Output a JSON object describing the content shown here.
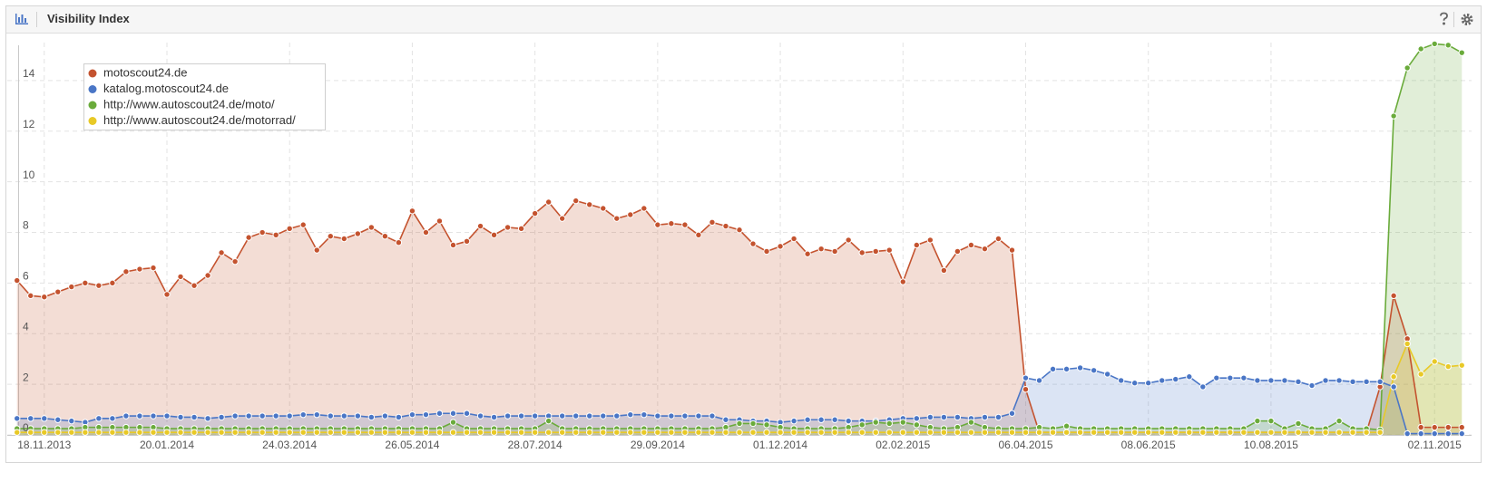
{
  "chart_data": {
    "type": "area",
    "title": "Visibility Index",
    "x": [
      "2013-11-04",
      "2013-11-11",
      "2013-11-18",
      "2013-11-25",
      "2013-12-02",
      "2013-12-09",
      "2013-12-16",
      "2013-12-23",
      "2013-12-30",
      "2014-01-06",
      "2014-01-13",
      "2014-01-20",
      "2014-01-27",
      "2014-02-03",
      "2014-02-10",
      "2014-02-17",
      "2014-02-24",
      "2014-03-03",
      "2014-03-10",
      "2014-03-17",
      "2014-03-24",
      "2014-03-31",
      "2014-04-07",
      "2014-04-14",
      "2014-04-21",
      "2014-04-28",
      "2014-05-05",
      "2014-05-12",
      "2014-05-19",
      "2014-05-26",
      "2014-06-02",
      "2014-06-09",
      "2014-06-16",
      "2014-06-23",
      "2014-06-30",
      "2014-07-07",
      "2014-07-14",
      "2014-07-21",
      "2014-07-28",
      "2014-08-04",
      "2014-08-11",
      "2014-08-18",
      "2014-08-25",
      "2014-09-01",
      "2014-09-08",
      "2014-09-15",
      "2014-09-22",
      "2014-09-29",
      "2014-10-06",
      "2014-10-13",
      "2014-10-20",
      "2014-10-27",
      "2014-11-03",
      "2014-11-10",
      "2014-11-17",
      "2014-11-24",
      "2014-12-01",
      "2014-12-08",
      "2014-12-15",
      "2014-12-22",
      "2014-12-29",
      "2015-01-05",
      "2015-01-12",
      "2015-01-19",
      "2015-01-26",
      "2015-02-02",
      "2015-02-09",
      "2015-02-16",
      "2015-02-23",
      "2015-03-02",
      "2015-03-09",
      "2015-03-16",
      "2015-03-23",
      "2015-03-30",
      "2015-04-06",
      "2015-04-13",
      "2015-04-20",
      "2015-04-27",
      "2015-05-04",
      "2015-05-11",
      "2015-05-18",
      "2015-05-25",
      "2015-06-01",
      "2015-06-08",
      "2015-06-15",
      "2015-06-22",
      "2015-06-29",
      "2015-07-06",
      "2015-07-13",
      "2015-07-20",
      "2015-07-27",
      "2015-08-03",
      "2015-08-10",
      "2015-08-17",
      "2015-08-24",
      "2015-08-31",
      "2015-09-07",
      "2015-09-14",
      "2015-09-21",
      "2015-09-28",
      "2015-10-05",
      "2015-10-12",
      "2015-10-19",
      "2015-10-26",
      "2015-11-02",
      "2015-11-09",
      "2015-11-16"
    ],
    "series": [
      {
        "name": "motoscout24.de",
        "color": "#c4532f",
        "values": [
          6.1,
          5.5,
          5.45,
          5.65,
          5.85,
          6.0,
          5.9,
          6.0,
          6.45,
          6.55,
          6.6,
          5.55,
          6.25,
          5.9,
          6.3,
          7.2,
          6.85,
          7.8,
          8.0,
          7.9,
          8.15,
          8.3,
          7.3,
          7.85,
          7.75,
          7.95,
          8.2,
          7.85,
          7.6,
          8.85,
          8.0,
          8.45,
          7.5,
          7.65,
          8.25,
          7.9,
          8.2,
          8.15,
          8.75,
          9.2,
          8.55,
          9.25,
          9.1,
          8.95,
          8.55,
          8.7,
          8.95,
          8.3,
          8.35,
          8.3,
          7.9,
          8.4,
          8.25,
          8.1,
          7.55,
          7.25,
          7.45,
          7.75,
          7.15,
          7.35,
          7.25,
          7.7,
          7.2,
          7.25,
          7.3,
          6.05,
          7.5,
          7.7,
          6.5,
          7.25,
          7.5,
          7.35,
          7.75,
          7.3,
          1.8,
          0.1,
          0.1,
          0.1,
          0.1,
          0.1,
          0.1,
          0.1,
          0.1,
          0.1,
          0.1,
          0.1,
          0.1,
          0.1,
          0.1,
          0.1,
          0.1,
          0.1,
          0.1,
          0.1,
          0.1,
          0.1,
          0.1,
          0.1,
          0.1,
          0.1,
          1.9,
          5.5,
          3.8,
          0.3,
          0.3,
          0.3,
          0.3
        ]
      },
      {
        "name": "katalog.motoscout24.de",
        "color": "#4a76c6",
        "values": [
          0.65,
          0.65,
          0.65,
          0.6,
          0.55,
          0.5,
          0.65,
          0.65,
          0.75,
          0.75,
          0.75,
          0.75,
          0.7,
          0.7,
          0.65,
          0.7,
          0.75,
          0.75,
          0.75,
          0.75,
          0.75,
          0.8,
          0.8,
          0.75,
          0.75,
          0.75,
          0.7,
          0.75,
          0.7,
          0.8,
          0.8,
          0.85,
          0.85,
          0.85,
          0.75,
          0.7,
          0.75,
          0.75,
          0.75,
          0.75,
          0.75,
          0.75,
          0.75,
          0.75,
          0.75,
          0.8,
          0.8,
          0.75,
          0.75,
          0.75,
          0.75,
          0.75,
          0.6,
          0.6,
          0.55,
          0.55,
          0.5,
          0.55,
          0.6,
          0.6,
          0.6,
          0.55,
          0.55,
          0.55,
          0.6,
          0.65,
          0.65,
          0.7,
          0.7,
          0.7,
          0.65,
          0.7,
          0.7,
          0.85,
          2.25,
          2.15,
          2.6,
          2.6,
          2.65,
          2.55,
          2.4,
          2.15,
          2.05,
          2.05,
          2.15,
          2.2,
          2.3,
          1.9,
          2.25,
          2.25,
          2.25,
          2.15,
          2.15,
          2.15,
          2.1,
          1.95,
          2.15,
          2.15,
          2.1,
          2.1,
          2.1,
          1.9,
          0.05,
          0.05,
          0.05,
          0.05,
          0.05
        ]
      },
      {
        "name": "http://www.autoscout24.de/moto/",
        "color": "#6aab3b",
        "values": [
          0.25,
          0.25,
          0.25,
          0.25,
          0.25,
          0.3,
          0.3,
          0.3,
          0.3,
          0.3,
          0.3,
          0.25,
          0.25,
          0.25,
          0.25,
          0.25,
          0.25,
          0.25,
          0.25,
          0.25,
          0.25,
          0.25,
          0.25,
          0.25,
          0.25,
          0.25,
          0.25,
          0.25,
          0.25,
          0.25,
          0.25,
          0.25,
          0.5,
          0.25,
          0.25,
          0.25,
          0.25,
          0.25,
          0.25,
          0.55,
          0.25,
          0.25,
          0.25,
          0.25,
          0.25,
          0.25,
          0.25,
          0.25,
          0.25,
          0.25,
          0.25,
          0.25,
          0.3,
          0.45,
          0.45,
          0.4,
          0.3,
          0.25,
          0.25,
          0.25,
          0.25,
          0.3,
          0.4,
          0.5,
          0.45,
          0.5,
          0.4,
          0.3,
          0.25,
          0.3,
          0.5,
          0.3,
          0.25,
          0.25,
          0.25,
          0.3,
          0.25,
          0.35,
          0.25,
          0.25,
          0.25,
          0.25,
          0.25,
          0.25,
          0.25,
          0.25,
          0.25,
          0.25,
          0.25,
          0.25,
          0.25,
          0.55,
          0.55,
          0.25,
          0.45,
          0.25,
          0.25,
          0.55,
          0.25,
          0.25,
          0.2,
          12.6,
          14.5,
          15.25,
          15.45,
          15.4,
          15.1
        ]
      },
      {
        "name": "http://www.autoscout24.de/motorrad/",
        "color": "#e8c927",
        "values": [
          0.1,
          0.1,
          0.1,
          0.1,
          0.1,
          0.1,
          0.1,
          0.1,
          0.1,
          0.1,
          0.1,
          0.1,
          0.1,
          0.1,
          0.1,
          0.1,
          0.1,
          0.1,
          0.1,
          0.1,
          0.1,
          0.1,
          0.1,
          0.1,
          0.1,
          0.1,
          0.1,
          0.1,
          0.1,
          0.1,
          0.1,
          0.1,
          0.1,
          0.1,
          0.1,
          0.1,
          0.1,
          0.1,
          0.1,
          0.1,
          0.1,
          0.1,
          0.1,
          0.1,
          0.1,
          0.1,
          0.1,
          0.1,
          0.1,
          0.1,
          0.1,
          0.1,
          0.1,
          0.1,
          0.1,
          0.1,
          0.1,
          0.1,
          0.1,
          0.1,
          0.1,
          0.1,
          0.1,
          0.1,
          0.1,
          0.1,
          0.1,
          0.1,
          0.1,
          0.1,
          0.1,
          0.1,
          0.1,
          0.1,
          0.1,
          0.1,
          0.1,
          0.1,
          0.1,
          0.1,
          0.1,
          0.1,
          0.1,
          0.1,
          0.1,
          0.1,
          0.1,
          0.1,
          0.1,
          0.1,
          0.1,
          0.1,
          0.1,
          0.1,
          0.1,
          0.1,
          0.1,
          0.1,
          0.1,
          0.1,
          0.1,
          2.3,
          3.6,
          2.4,
          2.9,
          2.7,
          2.75
        ]
      }
    ],
    "xlim": [
      "2013-10-30",
      "2015-11-21"
    ],
    "xticks": [
      {
        "value": "2013-11-18",
        "label": "18.11.2013"
      },
      {
        "value": "2014-01-20",
        "label": "20.01.2014"
      },
      {
        "value": "2014-03-24",
        "label": "24.03.2014"
      },
      {
        "value": "2014-05-26",
        "label": "26.05.2014"
      },
      {
        "value": "2014-07-28",
        "label": "28.07.2014"
      },
      {
        "value": "2014-09-29",
        "label": "29.09.2014"
      },
      {
        "value": "2014-12-01",
        "label": "01.12.2014"
      },
      {
        "value": "2015-02-02",
        "label": "02.02.2015"
      },
      {
        "value": "2015-04-06",
        "label": "06.04.2015"
      },
      {
        "value": "2015-06-08",
        "label": "08.06.2015"
      },
      {
        "value": "2015-08-10",
        "label": "10.08.2015"
      },
      {
        "value": "2015-11-02",
        "label": "02.11.2015"
      }
    ],
    "ylim": [
      0,
      15.5
    ],
    "yticks": [
      0,
      2,
      4,
      6,
      8,
      10,
      12,
      14
    ],
    "grid": true,
    "legend": "upper left"
  }
}
